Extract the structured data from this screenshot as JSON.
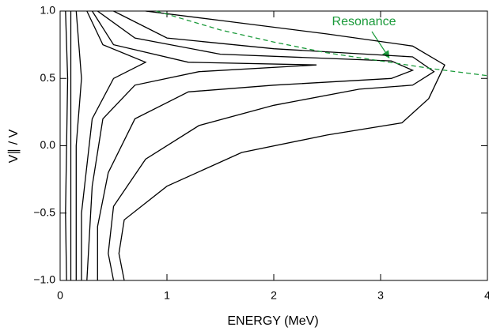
{
  "chart_data": {
    "type": "contour",
    "xlabel": "ENERGY (MeV)",
    "ylabel": "V∥ / V",
    "annotation": "Resonance",
    "xlim": [
      0,
      4
    ],
    "ylim": [
      -1,
      1
    ],
    "xticks": [
      0,
      1,
      2,
      3,
      4
    ],
    "yticks": [
      {
        "value": -1,
        "label": "−1.0"
      },
      {
        "value": -0.5,
        "label": "−0.5"
      },
      {
        "value": 0,
        "label": "0.0"
      },
      {
        "value": 0.5,
        "label": "0.5"
      },
      {
        "value": 1,
        "label": "1.0"
      }
    ],
    "contour_color": "#000000",
    "contours": [
      {
        "x": [
          0.8,
          1.5,
          2.5,
          3.3,
          3.6,
          3.45,
          3.2,
          2.5,
          1.7,
          1.0,
          0.6,
          0.55,
          0.6
        ],
        "y": [
          1.0,
          0.93,
          0.83,
          0.74,
          0.6,
          0.35,
          0.17,
          0.08,
          -0.05,
          -0.3,
          -0.55,
          -0.8,
          -1.0
        ]
      },
      {
        "x": [
          0.5,
          1.0,
          2.0,
          3.3,
          3.5,
          3.3,
          2.8,
          2.0,
          1.3,
          0.8,
          0.5,
          0.45,
          0.5
        ],
        "y": [
          1.0,
          0.8,
          0.72,
          0.66,
          0.55,
          0.45,
          0.42,
          0.3,
          0.15,
          -0.1,
          -0.45,
          -0.8,
          -1.0
        ]
      },
      {
        "x": [
          0.35,
          0.7,
          1.5,
          3.1,
          3.3,
          3.1,
          2.0,
          1.2,
          0.7,
          0.45,
          0.35,
          0.35
        ],
        "y": [
          1.0,
          0.8,
          0.68,
          0.63,
          0.56,
          0.5,
          0.45,
          0.4,
          0.2,
          -0.2,
          -0.6,
          -1.0
        ]
      },
      {
        "x": [
          0.3,
          0.5,
          1.2,
          2.4,
          1.3,
          0.7,
          0.4,
          0.3,
          0.25
        ],
        "y": [
          1.0,
          0.75,
          0.62,
          0.6,
          0.55,
          0.45,
          0.2,
          -0.3,
          -1.0
        ]
      },
      {
        "x": [
          0.25,
          0.4,
          0.8,
          0.5,
          0.3,
          0.2,
          0.2
        ],
        "y": [
          1.0,
          0.75,
          0.62,
          0.5,
          0.2,
          -0.5,
          -1.0
        ]
      },
      {
        "x": [
          0.15,
          0.2,
          0.15,
          0.15
        ],
        "y": [
          1.0,
          0.5,
          0.0,
          -1.0
        ]
      },
      {
        "x": [
          0.1,
          0.1,
          0.1
        ],
        "y": [
          1.0,
          0.0,
          -1.0
        ]
      },
      {
        "x": [
          0.05,
          0.07,
          0.05,
          0.06
        ],
        "y": [
          1.0,
          0.5,
          -0.5,
          -1.0
        ]
      }
    ],
    "series": [
      {
        "name": "Resonance",
        "color": "#1a9a3a",
        "dashed": true,
        "x": [
          0.9,
          1.5,
          2,
          2.5,
          3,
          3.5,
          4
        ],
        "values": [
          1.0,
          0.86,
          0.77,
          0.69,
          0.63,
          0.57,
          0.52
        ]
      }
    ]
  }
}
